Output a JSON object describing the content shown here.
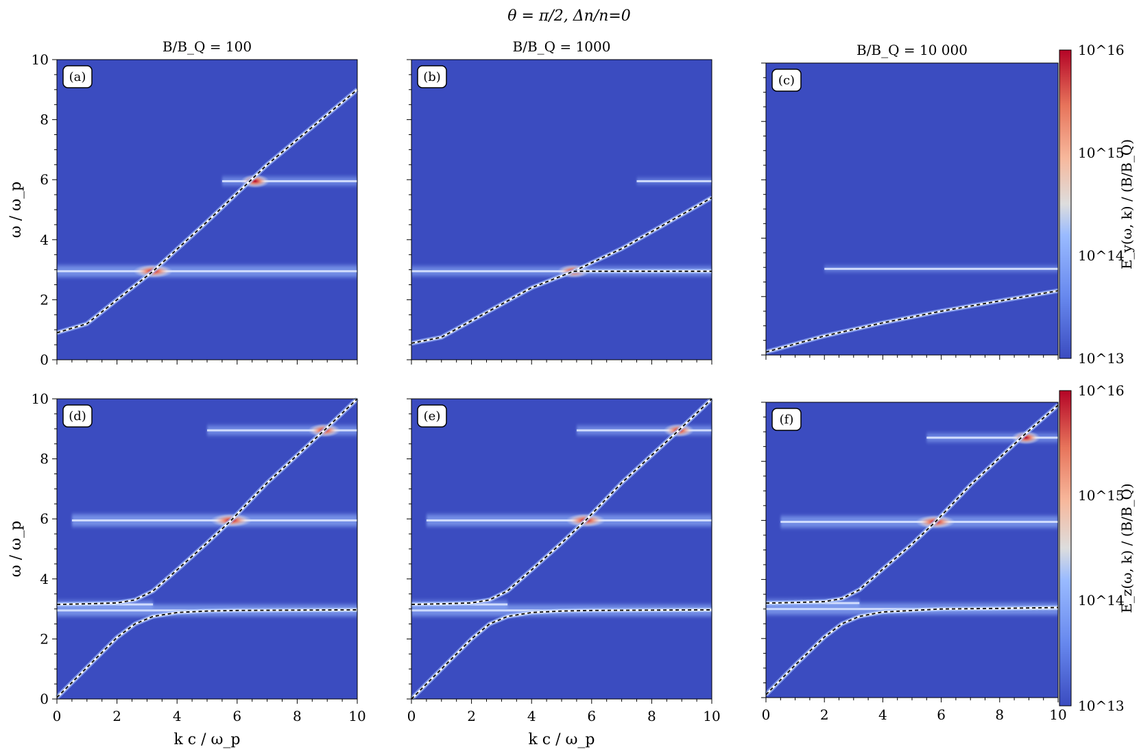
{
  "figure": {
    "title": "θ = π/2, Δn/n=0",
    "column_titles": [
      "B/B_Q = 100",
      "B/B_Q = 1000",
      "B/B_Q = 10 000"
    ],
    "xlabel": "k c / ω_p",
    "ylabel": "ω / ω_p",
    "colorbar_top": {
      "label": "E_y(ω, k) / (B/B_Q)",
      "ticks": [
        "10^16",
        "10^15",
        "10^14",
        "10^13"
      ]
    },
    "colorbar_bottom": {
      "label": "E_z(ω, k) / (B/B_Q)",
      "ticks": [
        "10^16",
        "10^15",
        "10^14",
        "10^13"
      ]
    }
  },
  "colors": {
    "background_field": "#3b4cc0",
    "band_light": "#dbe6ff",
    "hot": "#b40426",
    "dashed": "#000000",
    "line_white": "#ffffff"
  },
  "chart_data": [
    {
      "type": "heatmap",
      "panel": "(a)",
      "title": "B/B_Q = 100",
      "xlabel": "",
      "ylabel": "ω / ω_p",
      "xlim": [
        0,
        10
      ],
      "ylim": [
        0,
        10
      ],
      "xticks": [],
      "yticks": [
        0,
        2,
        4,
        6,
        8,
        10
      ],
      "dispersion_curves": [
        {
          "x": [
            0,
            1,
            2,
            3.2,
            5,
            7,
            10
          ],
          "y": [
            0.9,
            1.2,
            2.0,
            2.95,
            4.6,
            6.5,
            9.0
          ]
        }
      ],
      "bands": [
        {
          "omega": 2.95,
          "k_from": 0,
          "k_to": 10,
          "strength": 0.8,
          "hotspot_k": 3.2
        },
        {
          "omega": 5.95,
          "k_from": 5.5,
          "k_to": 10,
          "strength": 0.5,
          "hotspot_k": 6.6
        }
      ]
    },
    {
      "type": "heatmap",
      "panel": "(b)",
      "title": "B/B_Q = 1000",
      "xlabel": "",
      "ylabel": "",
      "xlim": [
        0,
        10
      ],
      "ylim": [
        0,
        10
      ],
      "xticks": [],
      "yticks": [],
      "dispersion_curves": [
        {
          "x": [
            0,
            1,
            2,
            3,
            4,
            5.4,
            7,
            10
          ],
          "y": [
            0.55,
            0.75,
            1.3,
            1.85,
            2.4,
            2.95,
            3.7,
            5.4
          ]
        },
        {
          "x": [
            5.4,
            10
          ],
          "y": [
            2.95,
            2.95
          ]
        }
      ],
      "bands": [
        {
          "omega": 2.95,
          "k_from": 0,
          "k_to": 10,
          "strength": 0.6,
          "hotspot_k": 5.4
        },
        {
          "omega": 5.95,
          "k_from": 7.5,
          "k_to": 10,
          "strength": 0.25,
          "hotspot_k": null
        }
      ]
    },
    {
      "type": "heatmap",
      "panel": "(c)",
      "title": "B/B_Q = 10 000",
      "xlabel": "",
      "ylabel": "",
      "xlim": [
        0,
        10
      ],
      "ylim": [
        0,
        10
      ],
      "xticks": [],
      "yticks": [],
      "dispersion_curves": [
        {
          "x": [
            0,
            2,
            4,
            6,
            8,
            10
          ],
          "y": [
            0.1,
            0.65,
            1.1,
            1.5,
            1.85,
            2.2
          ]
        }
      ],
      "bands": [
        {
          "omega": 2.95,
          "k_from": 2,
          "k_to": 10,
          "strength": 0.25,
          "hotspot_k": null
        }
      ]
    },
    {
      "type": "heatmap",
      "panel": "(d)",
      "title": "",
      "xlabel": "k c / ω_p",
      "ylabel": "ω / ω_p",
      "xlim": [
        0,
        10
      ],
      "ylim": [
        0,
        10
      ],
      "xticks": [
        0,
        2,
        4,
        6,
        8,
        10
      ],
      "yticks": [
        0,
        2,
        4,
        6,
        8,
        10
      ],
      "dispersion_curves": [
        {
          "x": [
            0,
            1,
            2,
            2.6,
            3.2,
            4,
            5,
            5.8,
            7,
            8.9,
            10
          ],
          "y": [
            3.15,
            3.17,
            3.2,
            3.3,
            3.6,
            4.3,
            5.2,
            5.95,
            7.2,
            8.95,
            10.0
          ]
        },
        {
          "x": [
            0,
            1,
            2,
            2.6,
            3.2,
            4,
            5,
            6,
            8,
            10
          ],
          "y": [
            0.05,
            1.05,
            2.05,
            2.5,
            2.75,
            2.88,
            2.93,
            2.95,
            2.96,
            2.97
          ]
        }
      ],
      "bands": [
        {
          "omega": 2.95,
          "k_from": 0,
          "k_to": 10,
          "strength": 0.8,
          "hotspot_k": null
        },
        {
          "omega": 3.15,
          "k_from": 0,
          "k_to": 3.2,
          "strength": 0.4,
          "hotspot_k": null
        },
        {
          "omega": 5.95,
          "k_from": 0.5,
          "k_to": 10,
          "strength": 0.85,
          "hotspot_k": 5.8
        },
        {
          "omega": 8.95,
          "k_from": 5,
          "k_to": 10,
          "strength": 0.6,
          "hotspot_k": 8.9
        }
      ]
    },
    {
      "type": "heatmap",
      "panel": "(e)",
      "title": "",
      "xlabel": "k c / ω_p",
      "ylabel": "",
      "xlim": [
        0,
        10
      ],
      "ylim": [
        0,
        10
      ],
      "xticks": [
        0,
        2,
        4,
        6,
        8,
        10
      ],
      "yticks": [],
      "dispersion_curves": [
        {
          "x": [
            0,
            1,
            2,
            2.6,
            3.2,
            4,
            5,
            5.8,
            7,
            8.9,
            10
          ],
          "y": [
            3.15,
            3.17,
            3.2,
            3.3,
            3.6,
            4.3,
            5.2,
            5.95,
            7.2,
            8.95,
            10.0
          ]
        },
        {
          "x": [
            0,
            1,
            2,
            2.6,
            3.2,
            4,
            5,
            6,
            8,
            10
          ],
          "y": [
            0.0,
            1.0,
            2.0,
            2.5,
            2.75,
            2.88,
            2.93,
            2.95,
            2.96,
            2.97
          ]
        }
      ],
      "bands": [
        {
          "omega": 2.95,
          "k_from": 0,
          "k_to": 10,
          "strength": 0.8,
          "hotspot_k": null
        },
        {
          "omega": 3.15,
          "k_from": 0,
          "k_to": 3.2,
          "strength": 0.4,
          "hotspot_k": null
        },
        {
          "omega": 5.95,
          "k_from": 0.5,
          "k_to": 10,
          "strength": 0.8,
          "hotspot_k": 5.8
        },
        {
          "omega": 8.95,
          "k_from": 5.5,
          "k_to": 10,
          "strength": 0.55,
          "hotspot_k": 8.9
        }
      ]
    },
    {
      "type": "heatmap",
      "panel": "(f)",
      "title": "",
      "xlabel": "",
      "ylabel": "",
      "xlim": [
        0,
        10
      ],
      "ylim": [
        0,
        10
      ],
      "xticks": [
        0,
        2,
        4,
        6,
        8,
        10
      ],
      "yticks": [],
      "dispersion_curves": [
        {
          "x": [
            0,
            1,
            2,
            2.6,
            3.2,
            4,
            5,
            5.8,
            7,
            8.9,
            10
          ],
          "y": [
            3.2,
            3.22,
            3.25,
            3.35,
            3.65,
            4.35,
            5.2,
            5.95,
            7.2,
            8.95,
            9.9
          ]
        },
        {
          "x": [
            0,
            1,
            2,
            2.6,
            3.2,
            4,
            5,
            6,
            8,
            10
          ],
          "y": [
            0.1,
            1.1,
            2.05,
            2.5,
            2.75,
            2.9,
            2.95,
            3.0,
            3.02,
            3.05
          ]
        }
      ],
      "bands": [
        {
          "omega": 3.0,
          "k_from": 0,
          "k_to": 10,
          "strength": 0.8,
          "hotspot_k": null
        },
        {
          "omega": 3.2,
          "k_from": 0,
          "k_to": 3.2,
          "strength": 0.4,
          "hotspot_k": null
        },
        {
          "omega": 5.95,
          "k_from": 0.5,
          "k_to": 10,
          "strength": 0.8,
          "hotspot_k": 5.8
        },
        {
          "omega": 8.8,
          "k_from": 5.5,
          "k_to": 10,
          "strength": 0.5,
          "hotspot_k": 8.9
        }
      ]
    }
  ]
}
